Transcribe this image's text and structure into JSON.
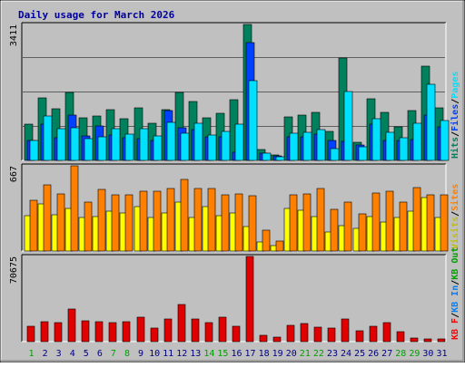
{
  "chart_data": [
    {
      "type": "bar",
      "title": "Daily usage for March 2026",
      "ylabel_max": "3411",
      "ylim": [
        0,
        3411
      ],
      "categories": [
        "1",
        "2",
        "3",
        "4",
        "5",
        "6",
        "7",
        "8",
        "9",
        "10",
        "11",
        "12",
        "13",
        "14",
        "15",
        "16",
        "17",
        "18",
        "19",
        "20",
        "21",
        "22",
        "23",
        "24",
        "25",
        "26",
        "27",
        "28",
        "29",
        "30",
        "31"
      ],
      "right_labels": [
        {
          "text": "Hits",
          "color": "#00805c"
        },
        {
          "text": "Files",
          "color": "#0040ff"
        },
        {
          "text": "Pages",
          "color": "#00e0ff"
        }
      ],
      "series": [
        {
          "name": "Hits",
          "color": "#00805c",
          "values": [
            915,
            1570,
            1290,
            1705,
            1070,
            1105,
            1280,
            1035,
            1330,
            930,
            1280,
            1705,
            1480,
            1060,
            1180,
            1530,
            3411,
            280,
            140,
            1100,
            1135,
            1205,
            725,
            2560,
            455,
            1550,
            1200,
            850,
            1250,
            2370,
            1330
          ]
        },
        {
          "name": "Files",
          "color": "#0040ff",
          "values": [
            490,
            905,
            560,
            1145,
            610,
            860,
            640,
            560,
            555,
            510,
            1240,
            820,
            770,
            590,
            600,
            210,
            2960,
            175,
            105,
            580,
            585,
            655,
            495,
            480,
            380,
            915,
            510,
            490,
            520,
            1135,
            850
          ]
        },
        {
          "name": "Pages",
          "color": "#00e0ff",
          "values": [
            510,
            1105,
            800,
            830,
            545,
            580,
            800,
            650,
            800,
            615,
            950,
            680,
            940,
            640,
            720,
            900,
            2000,
            180,
            90,
            690,
            710,
            770,
            290,
            1720,
            340,
            1050,
            700,
            570,
            935,
            1900,
            1000
          ]
        }
      ]
    },
    {
      "type": "bar",
      "ylabel_max": "667",
      "ylim": [
        0,
        667
      ],
      "categories": [
        "1",
        "2",
        "3",
        "4",
        "5",
        "6",
        "7",
        "8",
        "9",
        "10",
        "11",
        "12",
        "13",
        "14",
        "15",
        "16",
        "17",
        "18",
        "19",
        "20",
        "21",
        "22",
        "23",
        "24",
        "25",
        "26",
        "27",
        "28",
        "29",
        "30",
        "31"
      ],
      "right_labels": [
        {
          "text": "Visits",
          "color": "#c0c000"
        },
        {
          "text": "Sites",
          "color": "#ff8000"
        }
      ],
      "series": [
        {
          "name": "Visits",
          "color": "#ffff00",
          "values": [
            280,
            370,
            285,
            330,
            260,
            270,
            310,
            300,
            350,
            260,
            300,
            380,
            265,
            350,
            280,
            300,
            190,
            70,
            40,
            330,
            320,
            270,
            150,
            200,
            175,
            270,
            230,
            260,
            310,
            420,
            260
          ]
        },
        {
          "name": "Sites",
          "color": "#ff8000",
          "values": [
            400,
            520,
            450,
            667,
            380,
            480,
            440,
            440,
            465,
            465,
            490,
            560,
            490,
            490,
            440,
            445,
            430,
            160,
            80,
            440,
            450,
            490,
            325,
            380,
            290,
            455,
            470,
            385,
            500,
            440,
            440
          ]
        }
      ]
    },
    {
      "type": "bar",
      "ylabel_max": "70675",
      "ylim": [
        0,
        70675
      ],
      "categories": [
        "1",
        "2",
        "3",
        "4",
        "5",
        "6",
        "7",
        "8",
        "9",
        "10",
        "11",
        "12",
        "13",
        "14",
        "15",
        "16",
        "17",
        "18",
        "19",
        "20",
        "21",
        "22",
        "23",
        "24",
        "25",
        "26",
        "27",
        "28",
        "29",
        "30",
        "31"
      ],
      "right_labels": [
        {
          "text": "KB F",
          "color": "#ff0000"
        },
        {
          "text": "KB In",
          "color": "#0080ff"
        },
        {
          "text": "KB Out",
          "color": "#00a000"
        }
      ],
      "series": [
        {
          "name": "KB F",
          "color": "#e00000",
          "values": [
            12500,
            16500,
            15500,
            27000,
            17000,
            16500,
            15500,
            16500,
            20000,
            11500,
            18500,
            30500,
            19000,
            15500,
            20000,
            13000,
            70675,
            5500,
            3500,
            13500,
            15000,
            12000,
            11000,
            19000,
            9000,
            12500,
            16000,
            8500,
            3000,
            2000,
            2000
          ]
        }
      ]
    }
  ],
  "xaxis": {
    "day_colors": [
      "#00a000",
      "#000080",
      "#000080",
      "#000080",
      "#000080",
      "#000080",
      "#00a000",
      "#00a000",
      "#000080",
      "#000080",
      "#000080",
      "#000080",
      "#000080",
      "#00a000",
      "#00a000",
      "#000080",
      "#000080",
      "#000080",
      "#000080",
      "#000080",
      "#00a000",
      "#00a000",
      "#000080",
      "#000080",
      "#000080",
      "#000080",
      "#000080",
      "#00a000",
      "#00a000",
      "#000080",
      "#000080"
    ]
  },
  "colors": {
    "frame_bg": "#c0c0c0",
    "plot_bg": "#c0c0c0",
    "title": "#0000a0",
    "gridline": "#606060"
  }
}
